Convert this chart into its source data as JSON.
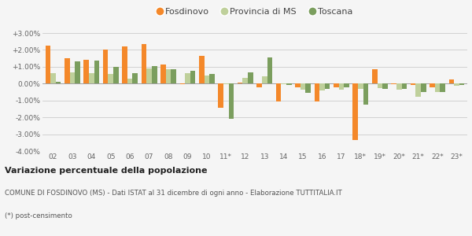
{
  "years": [
    "02",
    "03",
    "04",
    "05",
    "06",
    "07",
    "08",
    "09",
    "10",
    "11*",
    "12",
    "13",
    "14",
    "15",
    "16",
    "17",
    "18*",
    "19*",
    "20*",
    "21*",
    "22*",
    "23*"
  ],
  "fosdinovo": [
    2.25,
    1.5,
    1.4,
    2.0,
    2.2,
    2.35,
    1.15,
    -0.05,
    1.65,
    -1.45,
    0.05,
    -0.2,
    -1.05,
    -0.2,
    -1.05,
    -0.2,
    -3.35,
    0.85,
    -0.05,
    -0.1,
    -0.2,
    0.25
  ],
  "provincia_ms": [
    0.6,
    0.65,
    0.6,
    0.55,
    0.3,
    0.9,
    0.85,
    0.6,
    0.5,
    -0.05,
    0.35,
    0.45,
    -0.05,
    -0.35,
    -0.4,
    -0.35,
    -0.3,
    -0.25,
    -0.35,
    -0.8,
    -0.5,
    -0.15
  ],
  "toscana": [
    0.1,
    1.3,
    1.35,
    1.0,
    0.6,
    1.05,
    0.85,
    0.75,
    0.55,
    -2.1,
    0.65,
    1.55,
    -0.1,
    -0.55,
    -0.3,
    -0.2,
    -1.25,
    -0.3,
    -0.3,
    -0.5,
    -0.5,
    -0.1
  ],
  "color_fosdinovo": "#f4882a",
  "color_provincia": "#bfd09b",
  "color_toscana": "#7b9e5e",
  "ylim": [
    -4.0,
    3.0
  ],
  "yticks": [
    -4.0,
    -3.0,
    -2.0,
    -1.0,
    0.0,
    1.0,
    2.0,
    3.0
  ],
  "legend_labels": [
    "Fosdinovo",
    "Provincia di MS",
    "Toscana"
  ],
  "title_bold": "Variazione percentuale della popolazione",
  "footnote1": "COMUNE DI FOSDINOVO (MS) - Dati ISTAT al 31 dicembre di ogni anno - Elaborazione TUTTITALIA.IT",
  "footnote2": "(*) post-censimento",
  "background_color": "#f5f5f5",
  "bar_width": 0.27
}
